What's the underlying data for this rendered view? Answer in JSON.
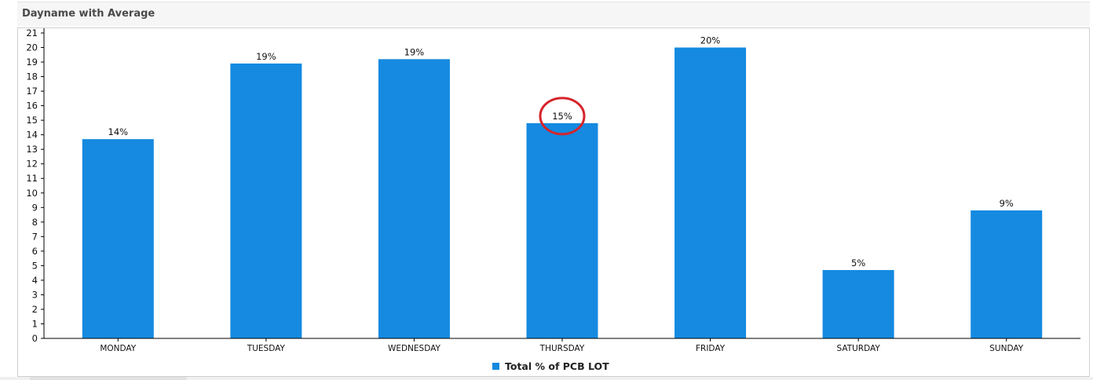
{
  "panel": {
    "title": "Dayname with Average"
  },
  "colors": {
    "bar": "#158ae0",
    "highlight_circle": "#d6242b",
    "axis": "#000000"
  },
  "chart_data": {
    "type": "bar",
    "title": "",
    "xlabel": "",
    "ylabel": "",
    "ylim": [
      0,
      21
    ],
    "yticks": [
      0,
      1,
      2,
      3,
      4,
      5,
      6,
      7,
      8,
      9,
      10,
      11,
      12,
      13,
      14,
      15,
      16,
      17,
      18,
      19,
      20,
      21
    ],
    "categories": [
      "MONDAY",
      "TUESDAY",
      "WEDNESDAY",
      "THURSDAY",
      "FRIDAY",
      "SATURDAY",
      "SUNDAY"
    ],
    "series": [
      {
        "name": "Total % of PCB LOT",
        "values": [
          13.7,
          18.9,
          19.2,
          14.8,
          20.0,
          4.7,
          8.8
        ],
        "labels": [
          "14%",
          "19%",
          "19%",
          "15%",
          "20%",
          "5%",
          "9%"
        ]
      }
    ],
    "legend": "bottom-center",
    "grid": false,
    "annotations": [
      {
        "type": "circle",
        "category": "THURSDAY",
        "target": "value-label"
      }
    ]
  }
}
